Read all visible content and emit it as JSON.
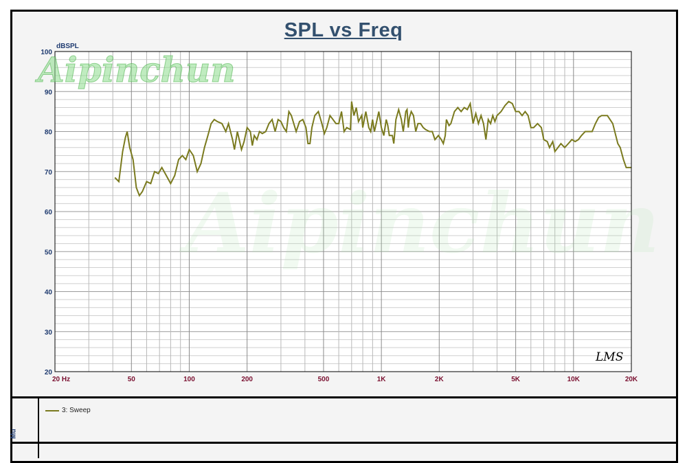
{
  "chart_data": {
    "type": "line",
    "title": "SPL vs Freq",
    "ylabel": "dBSPL",
    "xlabel": "",
    "x_scale": "log",
    "xlim": [
      20,
      20000
    ],
    "ylim": [
      20,
      100
    ],
    "y_ticks": [
      20,
      30,
      40,
      50,
      60,
      70,
      80,
      90,
      100
    ],
    "x_tick_labels": [
      {
        "value": 20,
        "label": "20  Hz"
      },
      {
        "value": 50,
        "label": "50"
      },
      {
        "value": 100,
        "label": "100"
      },
      {
        "value": 200,
        "label": "200"
      },
      {
        "value": 500,
        "label": "500"
      },
      {
        "value": 1000,
        "label": "1K"
      },
      {
        "value": 2000,
        "label": "2K"
      },
      {
        "value": 5000,
        "label": "5K"
      },
      {
        "value": 10000,
        "label": "10K"
      },
      {
        "value": 20000,
        "label": "20K"
      }
    ],
    "grid": true,
    "legend": "bottom-left",
    "series": [
      {
        "name": "3: Sweep",
        "color": "#7a7a1e",
        "points": [
          [
            41,
            68.5
          ],
          [
            43,
            67.5
          ],
          [
            45,
            75
          ],
          [
            46.5,
            78.5
          ],
          [
            47.5,
            80
          ],
          [
            49,
            76
          ],
          [
            51,
            73
          ],
          [
            53,
            66
          ],
          [
            55,
            64
          ],
          [
            57,
            65
          ],
          [
            60,
            67.5
          ],
          [
            63,
            67
          ],
          [
            66,
            70
          ],
          [
            69,
            69.5
          ],
          [
            72,
            71
          ],
          [
            76,
            69
          ],
          [
            80,
            67
          ],
          [
            84,
            69
          ],
          [
            88,
            73
          ],
          [
            92,
            74
          ],
          [
            96,
            73
          ],
          [
            100,
            75.5
          ],
          [
            105,
            74
          ],
          [
            110,
            70
          ],
          [
            115,
            72
          ],
          [
            120,
            76
          ],
          [
            125,
            79
          ],
          [
            130,
            82
          ],
          [
            135,
            83
          ],
          [
            140,
            82.5
          ],
          [
            148,
            82
          ],
          [
            155,
            80
          ],
          [
            160,
            82
          ],
          [
            168,
            78
          ],
          [
            172,
            75.5
          ],
          [
            178,
            80
          ],
          [
            182,
            78
          ],
          [
            187,
            75.5
          ],
          [
            193,
            77.5
          ],
          [
            200,
            81
          ],
          [
            208,
            80
          ],
          [
            213,
            76.5
          ],
          [
            218,
            79
          ],
          [
            225,
            78
          ],
          [
            232,
            80
          ],
          [
            240,
            79.5
          ],
          [
            250,
            80
          ],
          [
            260,
            82
          ],
          [
            270,
            83
          ],
          [
            280,
            80
          ],
          [
            290,
            83
          ],
          [
            300,
            82.5
          ],
          [
            310,
            81
          ],
          [
            320,
            80
          ],
          [
            330,
            85
          ],
          [
            340,
            84
          ],
          [
            350,
            82
          ],
          [
            360,
            80
          ],
          [
            375,
            82.5
          ],
          [
            390,
            83
          ],
          [
            405,
            81
          ],
          [
            415,
            77
          ],
          [
            425,
            77
          ],
          [
            435,
            81
          ],
          [
            450,
            84
          ],
          [
            470,
            85
          ],
          [
            490,
            82
          ],
          [
            505,
            79.5
          ],
          [
            520,
            81
          ],
          [
            540,
            84
          ],
          [
            560,
            83
          ],
          [
            580,
            82
          ],
          [
            600,
            82
          ],
          [
            620,
            85
          ],
          [
            640,
            80
          ],
          [
            660,
            81
          ],
          [
            690,
            80.5
          ],
          [
            700,
            87.5
          ],
          [
            720,
            84
          ],
          [
            740,
            86
          ],
          [
            760,
            82.5
          ],
          [
            790,
            84
          ],
          [
            800,
            81
          ],
          [
            830,
            85
          ],
          [
            860,
            81
          ],
          [
            880,
            80
          ],
          [
            900,
            83
          ],
          [
            920,
            80
          ],
          [
            940,
            82
          ],
          [
            970,
            85
          ],
          [
            1000,
            81
          ],
          [
            1030,
            79
          ],
          [
            1060,
            83
          ],
          [
            1080,
            81.5
          ],
          [
            1100,
            79
          ],
          [
            1140,
            79
          ],
          [
            1160,
            77
          ],
          [
            1190,
            83
          ],
          [
            1230,
            85.5
          ],
          [
            1270,
            83
          ],
          [
            1300,
            80
          ],
          [
            1340,
            85
          ],
          [
            1360,
            85.5
          ],
          [
            1380,
            81
          ],
          [
            1400,
            83.5
          ],
          [
            1430,
            85
          ],
          [
            1470,
            84
          ],
          [
            1510,
            80
          ],
          [
            1550,
            82
          ],
          [
            1600,
            82
          ],
          [
            1650,
            81
          ],
          [
            1700,
            80.5
          ],
          [
            1780,
            80
          ],
          [
            1840,
            80
          ],
          [
            1900,
            78
          ],
          [
            1980,
            79
          ],
          [
            2050,
            78
          ],
          [
            2100,
            77
          ],
          [
            2150,
            79
          ],
          [
            2180,
            83
          ],
          [
            2250,
            81.5
          ],
          [
            2300,
            82
          ],
          [
            2400,
            85
          ],
          [
            2500,
            86
          ],
          [
            2600,
            85
          ],
          [
            2700,
            86
          ],
          [
            2800,
            85.5
          ],
          [
            2900,
            87
          ],
          [
            3000,
            82
          ],
          [
            3100,
            84.5
          ],
          [
            3200,
            82
          ],
          [
            3300,
            84
          ],
          [
            3400,
            82
          ],
          [
            3500,
            78
          ],
          [
            3600,
            83
          ],
          [
            3700,
            82
          ],
          [
            3800,
            84
          ],
          [
            3900,
            82.5
          ],
          [
            4000,
            84
          ],
          [
            4200,
            85
          ],
          [
            4400,
            86.5
          ],
          [
            4600,
            87.5
          ],
          [
            4800,
            87
          ],
          [
            5000,
            85
          ],
          [
            5200,
            85
          ],
          [
            5400,
            84
          ],
          [
            5600,
            85
          ],
          [
            5800,
            84
          ],
          [
            6000,
            81
          ],
          [
            6200,
            81
          ],
          [
            6500,
            82
          ],
          [
            6800,
            81
          ],
          [
            7000,
            78
          ],
          [
            7300,
            77.5
          ],
          [
            7500,
            76
          ],
          [
            7800,
            77.5
          ],
          [
            8000,
            75
          ],
          [
            8300,
            76
          ],
          [
            8600,
            77
          ],
          [
            9000,
            76
          ],
          [
            9400,
            77
          ],
          [
            9800,
            78
          ],
          [
            10200,
            77.5
          ],
          [
            10600,
            78
          ],
          [
            11000,
            79
          ],
          [
            11500,
            80
          ],
          [
            12000,
            80
          ],
          [
            12500,
            80
          ],
          [
            13000,
            82
          ],
          [
            13500,
            83.5
          ],
          [
            14000,
            84
          ],
          [
            15000,
            84
          ],
          [
            16000,
            82
          ],
          [
            17000,
            77
          ],
          [
            17500,
            76
          ],
          [
            18200,
            73
          ],
          [
            18800,
            71
          ],
          [
            19400,
            71
          ],
          [
            20000,
            71
          ]
        ]
      }
    ]
  },
  "watermarks": {
    "top_text": "Aipinchun",
    "center_text": "Aipinchun"
  },
  "mark": "LMS",
  "side_label": "Mu",
  "legend_entry": "3: Sweep"
}
